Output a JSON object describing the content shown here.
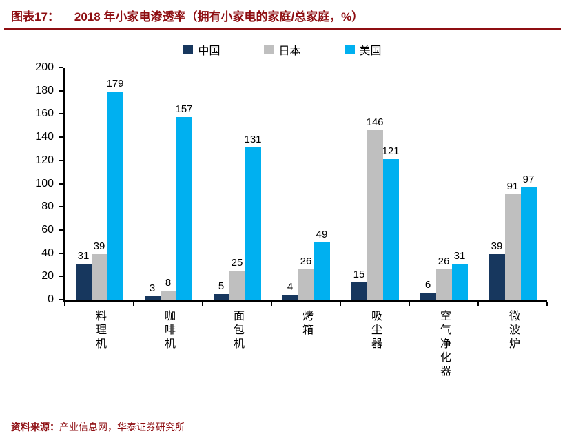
{
  "header": {
    "figure_label": "图表17：",
    "title": "2018 年小家电渗透率（拥有小家电的家庭/总家庭，%）"
  },
  "chart_data": {
    "type": "bar",
    "title": "2018 年小家电渗透率（拥有小家电的家庭/总家庭，%）",
    "categories": [
      "料理机",
      "咖啡机",
      "面包机",
      "烤箱",
      "吸尘器",
      "空气净化器",
      "微波炉"
    ],
    "series": [
      {
        "name": "中国",
        "color": "#17375E",
        "values": [
          31,
          3,
          5,
          4,
          15,
          6,
          39
        ]
      },
      {
        "name": "日本",
        "color": "#BFBFBF",
        "values": [
          39,
          8,
          25,
          26,
          146,
          26,
          91
        ]
      },
      {
        "name": "美国",
        "color": "#00B0F0",
        "values": [
          179,
          157,
          131,
          49,
          121,
          31,
          97
        ]
      }
    ],
    "ylim": [
      0,
      200
    ],
    "yticks": [
      0,
      20,
      40,
      60,
      80,
      100,
      120,
      140,
      160,
      180,
      200
    ],
    "grid": false,
    "legend_position": "top",
    "xlabel": "",
    "ylabel": ""
  },
  "footer": {
    "source_label": "资料来源：",
    "source_text": "产业信息网，华泰证券研究所"
  },
  "colors": {
    "accent_red": "#8E0E12",
    "bar_china": "#17375E",
    "bar_japan": "#BFBFBF",
    "bar_usa": "#00B0F0",
    "axis": "#000000"
  }
}
